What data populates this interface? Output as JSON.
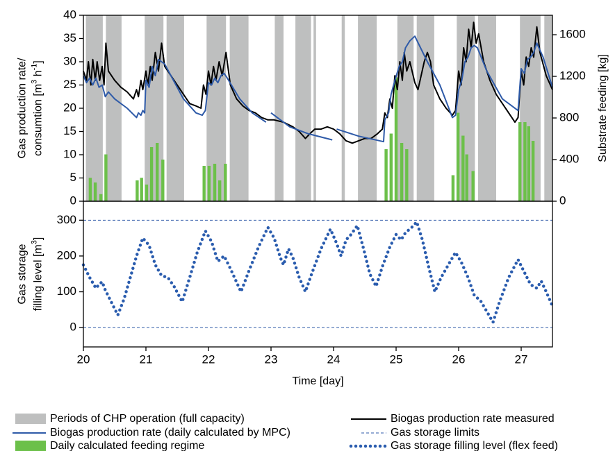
{
  "chart_data": [
    {
      "type": "combo",
      "ylabel": [
        [
          "Gas production rate/"
        ],
        [
          "consumtion [m",
          {
            "sup": "3"
          },
          " h",
          {
            "sup": "-1"
          },
          "]"
        ]
      ],
      "y2label": "Substrate feeding [kg]",
      "xlim": [
        20,
        27.5
      ],
      "ylim": [
        0,
        40
      ],
      "yticks": [
        0,
        5,
        10,
        15,
        20,
        25,
        30,
        35,
        40
      ],
      "y2lim": [
        0,
        1787
      ],
      "y2ticks": [
        0,
        400,
        800,
        1200,
        1600
      ],
      "series": [
        {
          "name": "Periods of CHP operation (full capacity)",
          "kind": "span",
          "color": "#bebfbf",
          "spans": [
            [
              20.04,
              20.31
            ],
            [
              20.36,
              20.61
            ],
            [
              20.98,
              21.28
            ],
            [
              21.33,
              21.61
            ],
            [
              21.97,
              22.28
            ],
            [
              22.34,
              22.64
            ],
            [
              23.06,
              23.2
            ],
            [
              23.39,
              23.64
            ],
            [
              23.68,
              23.72
            ],
            [
              24.13,
              24.18
            ],
            [
              24.39,
              24.69
            ],
            [
              25.02,
              25.28
            ],
            [
              25.33,
              25.61
            ],
            [
              25.97,
              26.26
            ],
            [
              26.31,
              26.6
            ],
            [
              26.98,
              27.31
            ],
            [
              27.37,
              27.5
            ]
          ]
        },
        {
          "name": "Biogas production rate measured",
          "kind": "line",
          "color": "#000000",
          "x": [
            20.0,
            20.05,
            20.08,
            20.12,
            20.15,
            20.19,
            20.22,
            20.26,
            20.3,
            20.33,
            20.36,
            20.4,
            20.5,
            20.6,
            20.7,
            20.8,
            20.85,
            20.88,
            20.92,
            20.95,
            21.0,
            21.03,
            21.07,
            21.1,
            21.15,
            21.2,
            21.25,
            21.3,
            21.4,
            21.5,
            21.6,
            21.7,
            21.8,
            21.88,
            21.92,
            21.96,
            22.0,
            22.04,
            22.08,
            22.12,
            22.17,
            22.22,
            22.28,
            22.35,
            22.45,
            22.55,
            22.65,
            22.75,
            22.85,
            22.95,
            23.05,
            23.2,
            23.35,
            23.45,
            23.55,
            23.62,
            23.7,
            23.8,
            23.9,
            24.0,
            24.1,
            24.2,
            24.3,
            24.4,
            24.5,
            24.6,
            24.7,
            24.78,
            24.82,
            24.86,
            24.9,
            24.94,
            24.98,
            25.02,
            25.06,
            25.1,
            25.13,
            25.17,
            25.22,
            25.3,
            25.35,
            25.45,
            25.5,
            25.55,
            25.6,
            25.7,
            25.8,
            25.9,
            25.95,
            26.0,
            26.04,
            26.08,
            26.12,
            26.16,
            26.2,
            26.24,
            26.28,
            26.32,
            26.4,
            26.5,
            26.6,
            26.7,
            26.8,
            26.9,
            26.95,
            27.0,
            27.04,
            27.08,
            27.12,
            27.16,
            27.2,
            27.25,
            27.3,
            27.4,
            27.5
          ],
          "values": [
            28,
            26,
            30,
            25,
            30.5,
            26,
            30,
            26,
            29,
            25,
            34,
            28,
            26,
            24.5,
            23.5,
            22,
            24,
            22.5,
            26,
            24,
            28,
            25,
            29,
            26,
            32,
            28,
            34,
            29,
            27,
            25,
            23,
            21,
            20.5,
            20,
            25,
            23,
            28,
            25,
            29,
            26,
            30,
            27,
            32,
            25,
            22,
            20.5,
            19.5,
            19,
            18,
            17.5,
            17.5,
            17,
            16,
            15,
            13.5,
            14.5,
            15.5,
            15.5,
            16,
            15.5,
            14.5,
            13,
            12.5,
            13,
            13.5,
            13.5,
            14.5,
            15.5,
            19,
            18,
            22,
            20,
            27,
            24,
            30,
            26,
            32,
            28,
            30,
            25.5,
            24,
            30,
            32,
            30,
            25,
            22,
            20,
            18.5,
            19.5,
            28,
            25,
            33,
            30,
            37,
            33,
            38.5,
            34,
            36,
            30,
            26,
            23,
            21,
            19,
            17,
            18,
            28,
            25,
            31,
            29,
            33,
            31,
            37.5,
            32,
            27,
            24
          ]
        },
        {
          "name": "Biogas production rate (daily calculated by MPC)",
          "kind": "line",
          "color": "#2e5aa8",
          "x": [
            20.0,
            20.05,
            20.1,
            20.15,
            20.2,
            20.25,
            20.3,
            20.35,
            20.4,
            20.5,
            20.7,
            20.85,
            20.88,
            20.92,
            20.95,
            20.98,
            21.0,
            21.05,
            21.1,
            21.15,
            21.2,
            21.25,
            21.3,
            21.4,
            21.6,
            21.8,
            21.9,
            21.95,
            22.0,
            22.05,
            22.1,
            22.15,
            22.2,
            22.25,
            22.3,
            22.5,
            22.7,
            22.92,
            22.96,
            23.0,
            23.3,
            23.6,
            23.98,
            24.02,
            24.05,
            24.4,
            24.8,
            24.82,
            24.88,
            24.92,
            24.98,
            25.05,
            25.1,
            25.15,
            25.22,
            25.3,
            25.5,
            25.7,
            25.9,
            25.95,
            26.0,
            26.05,
            26.1,
            26.15,
            26.2,
            26.25,
            26.3,
            26.45,
            26.7,
            26.95,
            27.0,
            27.05,
            27.1,
            27.15,
            27.2,
            27.25,
            27.35,
            27.5
          ],
          "values": [
            27,
            25.5,
            26.5,
            25,
            26.5,
            24.5,
            25,
            22.5,
            23.5,
            22,
            20,
            18,
            19,
            18.5,
            19.5,
            19,
            26,
            24.5,
            29,
            27,
            30.5,
            30,
            29.5,
            27,
            22,
            19,
            18.5,
            19.5,
            25.5,
            25,
            26.5,
            25.5,
            27,
            27.5,
            26.5,
            22,
            19,
            17,
            null,
            19,
            16,
            14.5,
            13.2,
            null,
            15.5,
            14,
            12.8,
            17.5,
            19,
            23,
            26,
            29,
            30,
            33,
            34.5,
            35.5,
            30,
            25,
            18,
            18.5,
            24,
            26,
            30,
            31,
            33,
            33.5,
            33,
            28,
            22,
            19.5,
            28.5,
            27.5,
            30.5,
            31,
            32,
            34,
            31,
            24.5
          ]
        },
        {
          "name": "Daily calculated feeding regime",
          "kind": "bar",
          "axis": "y2",
          "color": "#6cc04a",
          "x": [
            20.11,
            20.19,
            20.28,
            20.36,
            20.86,
            20.93,
            21.01,
            21.09,
            21.18,
            21.27,
            21.93,
            22.01,
            22.1,
            22.18,
            22.27,
            24.84,
            24.92,
            25.0,
            25.09,
            25.17,
            25.91,
            25.99,
            26.07,
            26.13,
            26.23,
            26.98,
            27.06,
            27.12,
            27.19
          ],
          "values": [
            225,
            180,
            68,
            450,
            200,
            225,
            160,
            520,
            560,
            400,
            340,
            340,
            360,
            200,
            360,
            500,
            650,
            1190,
            560,
            500,
            250,
            850,
            630,
            450,
            290,
            760,
            760,
            720,
            580
          ]
        }
      ]
    },
    {
      "type": "combo",
      "ylabel": [
        [
          "Gas storage"
        ],
        [
          "filling level [m",
          {
            "sup": "3"
          },
          "]"
        ]
      ],
      "xlabel": "Time [day]",
      "xlim": [
        20,
        27.5
      ],
      "xticks": [
        20,
        21,
        22,
        23,
        24,
        25,
        26,
        27
      ],
      "ylim": [
        -54,
        353
      ],
      "yticks": [
        0,
        100,
        200,
        300
      ],
      "series": [
        {
          "name": "Gas storage limits",
          "kind": "hline",
          "color": "#2e5aa8",
          "values": [
            0,
            300
          ]
        },
        {
          "name": "Gas storage filling level (flex feed)",
          "kind": "dotted",
          "color": "#2a5cae",
          "x": [
            20.0,
            20.1,
            20.2,
            20.25,
            20.3,
            20.35,
            20.45,
            20.55,
            20.65,
            20.75,
            20.85,
            20.95,
            21.05,
            21.15,
            21.25,
            21.35,
            21.45,
            21.58,
            21.7,
            21.82,
            21.95,
            22.05,
            22.15,
            22.25,
            22.35,
            22.48,
            22.52,
            22.65,
            22.8,
            22.95,
            23.05,
            23.15,
            23.2,
            23.28,
            23.35,
            23.45,
            23.55,
            23.65,
            23.8,
            23.95,
            24.05,
            24.12,
            24.2,
            24.28,
            24.38,
            24.48,
            24.58,
            24.68,
            24.78,
            24.9,
            25.0,
            25.08,
            25.15,
            25.25,
            25.33,
            25.42,
            25.52,
            25.62,
            25.72,
            25.85,
            25.95,
            26.05,
            26.15,
            26.25,
            26.35,
            26.45,
            26.55,
            26.65,
            26.8,
            26.95,
            27.05,
            27.15,
            27.25,
            27.32,
            27.4,
            27.5
          ],
          "values": [
            175,
            140,
            110,
            120,
            128,
            105,
            70,
            35,
            80,
            140,
            200,
            250,
            230,
            175,
            145,
            140,
            115,
            72,
            140,
            210,
            270,
            240,
            185,
            200,
            165,
            115,
            100,
            160,
            225,
            280,
            250,
            195,
            175,
            220,
            195,
            140,
            100,
            150,
            220,
            275,
            235,
            200,
            245,
            260,
            285,
            220,
            150,
            115,
            170,
            225,
            260,
            245,
            265,
            280,
            295,
            245,
            170,
            100,
            140,
            180,
            210,
            180,
            140,
            90,
            75,
            45,
            15,
            70,
            140,
            190,
            155,
            120,
            110,
            130,
            100,
            60
          ]
        }
      ]
    }
  ]
}
